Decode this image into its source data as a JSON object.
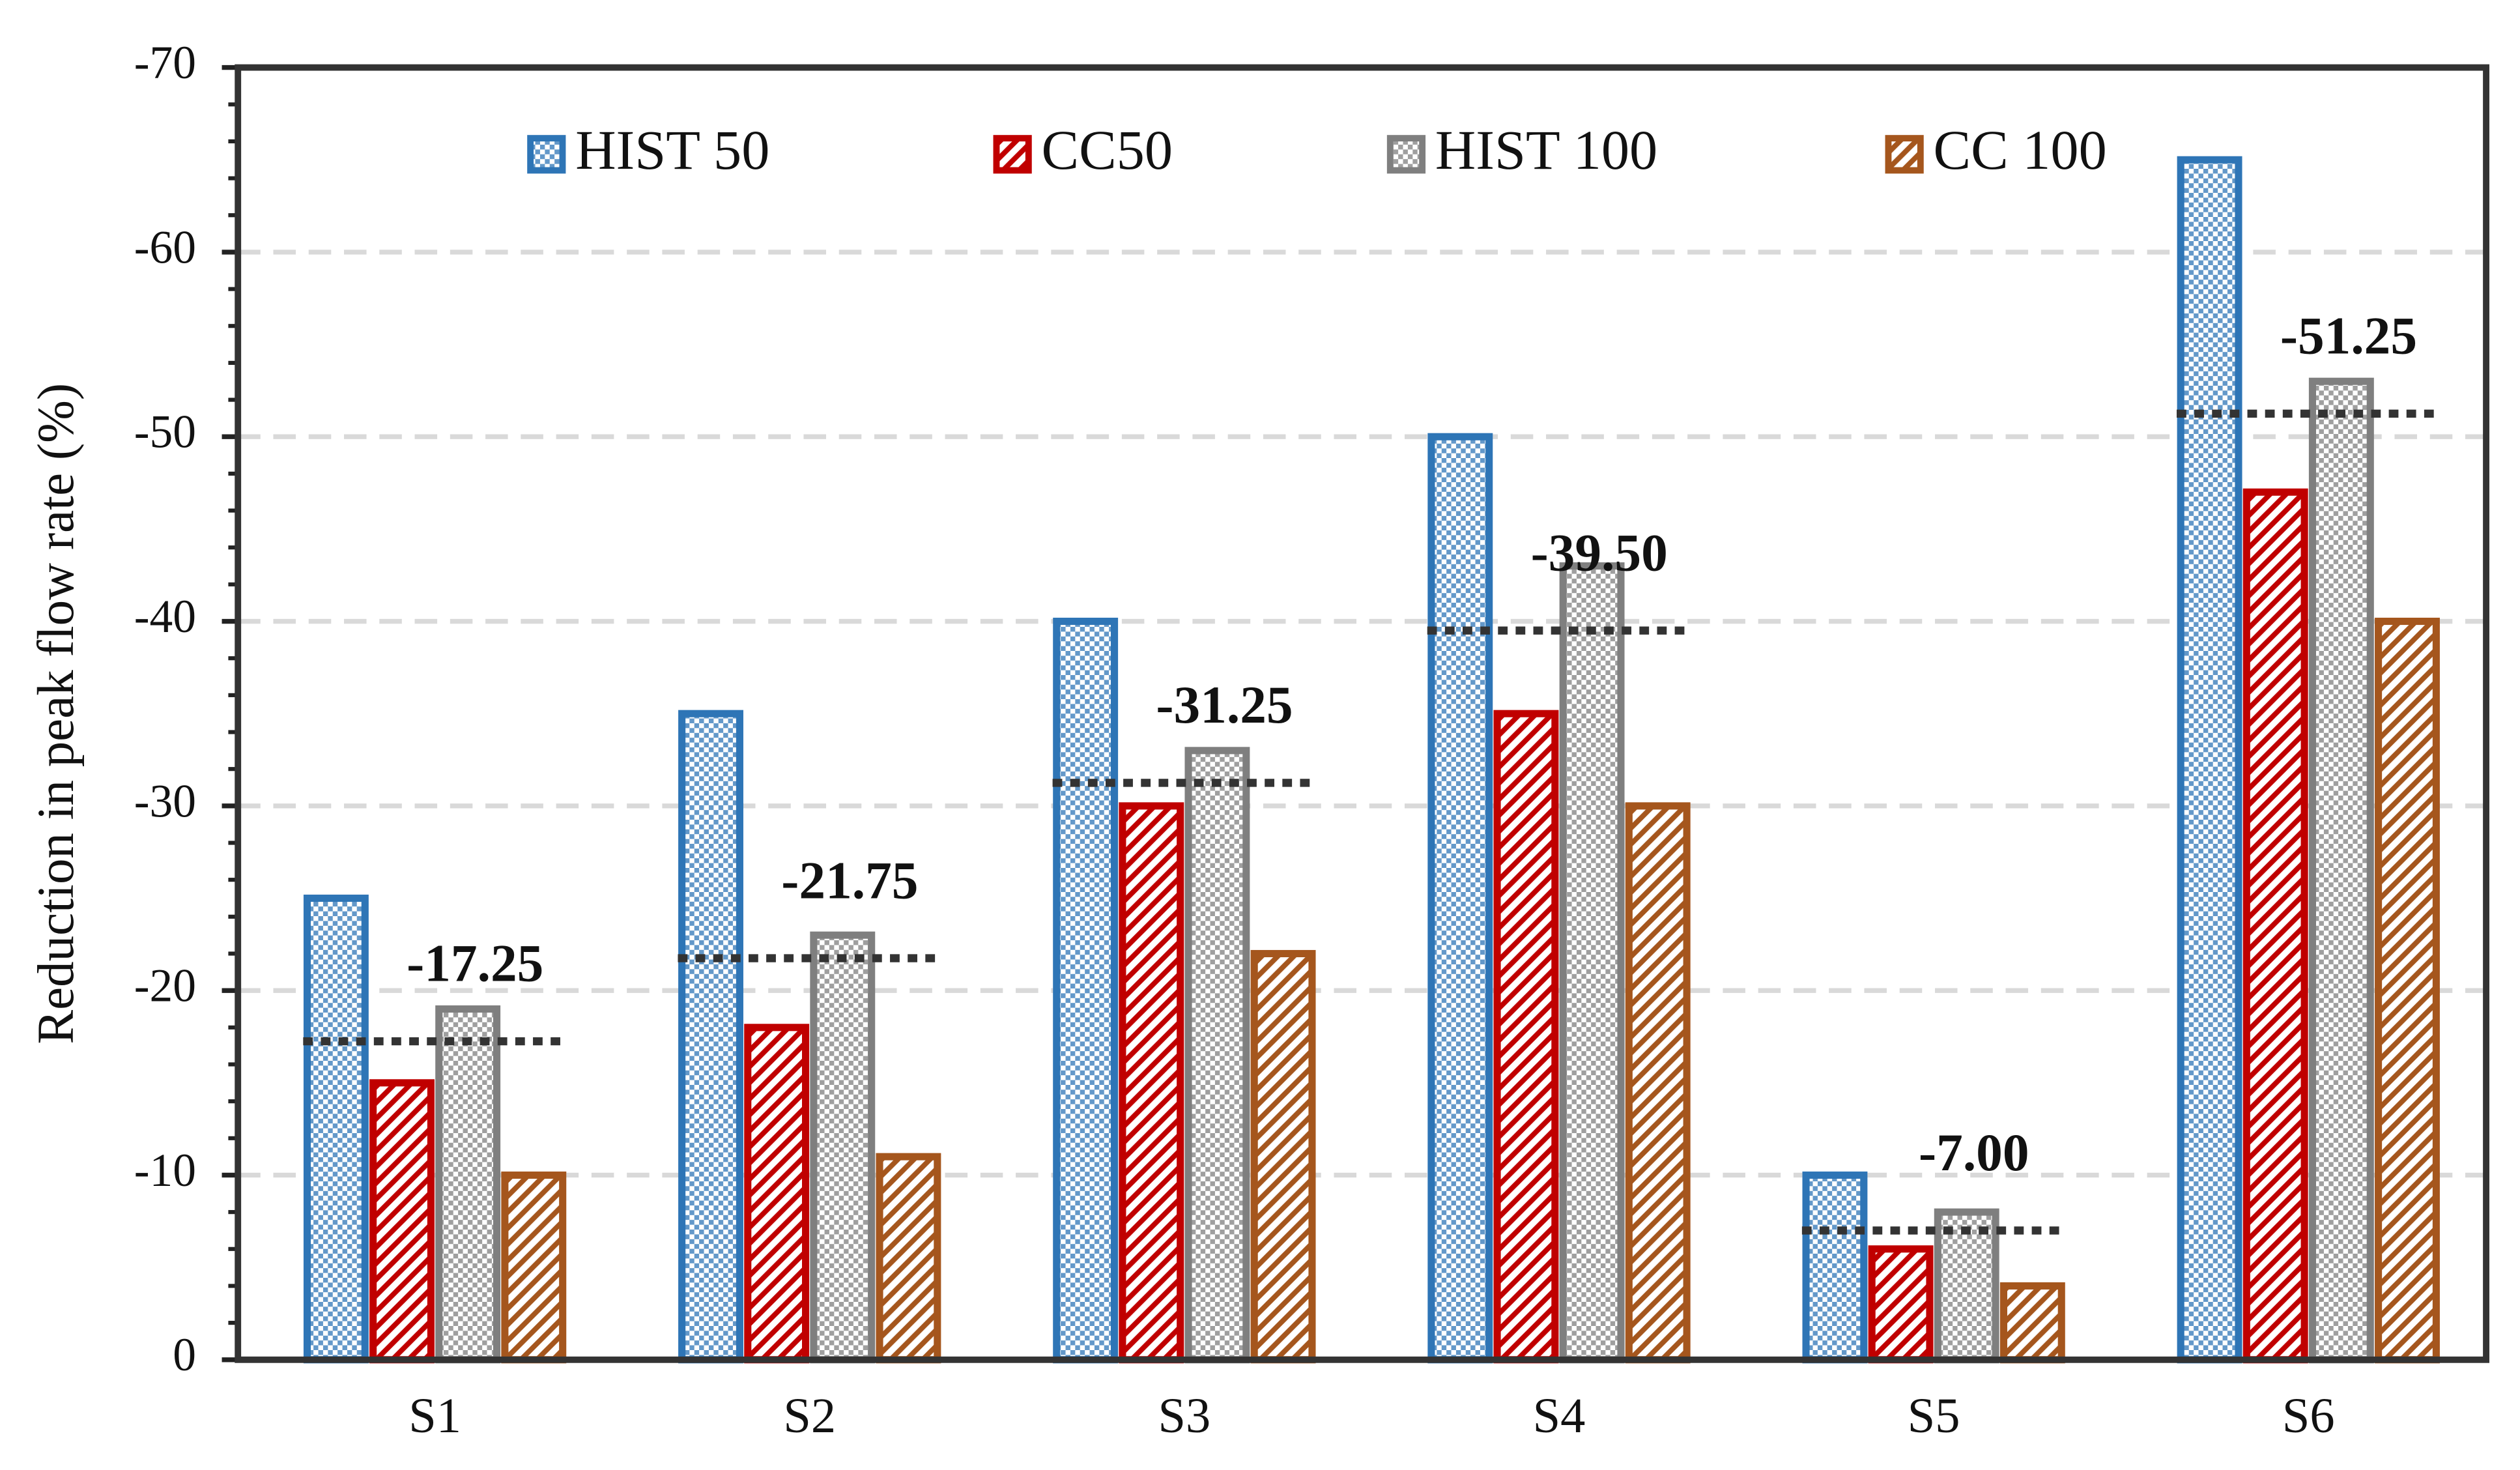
{
  "chart_data": {
    "type": "bar",
    "y_label": "Reduction in peak flow rate (%)",
    "categories": [
      "S1",
      "S2",
      "S3",
      "S4",
      "S5",
      "S6"
    ],
    "series": [
      {
        "name": "HIST 50",
        "color": "#2e75b6",
        "values": [
          -25,
          -35,
          -40,
          -50,
          -10,
          -65
        ]
      },
      {
        "name": "CC50",
        "color": "#c00000",
        "values": [
          -15,
          -18,
          -30,
          -35,
          -6,
          -47
        ]
      },
      {
        "name": "HIST 100",
        "color": "#7f7f7f",
        "values": [
          -19,
          -23,
          -33,
          -43,
          -8,
          -53
        ]
      },
      {
        "name": "CC 100",
        "color": "#a5561d",
        "values": [
          -10,
          -11,
          -22,
          -30,
          -4,
          -40
        ]
      }
    ],
    "average": {
      "color": "#333333",
      "values": [
        -17.25,
        -21.75,
        -31.25,
        -39.5,
        -7,
        -51.25
      ],
      "value_labels": [
        "-17.25",
        "-21.75",
        "-31.25",
        "-39.50",
        "-7.00",
        "-51.25"
      ]
    },
    "ylim": [
      0,
      -70
    ],
    "yticks": [
      0,
      -10,
      -20,
      -30,
      -40,
      -50,
      -60,
      -70
    ],
    "grid": true
  }
}
